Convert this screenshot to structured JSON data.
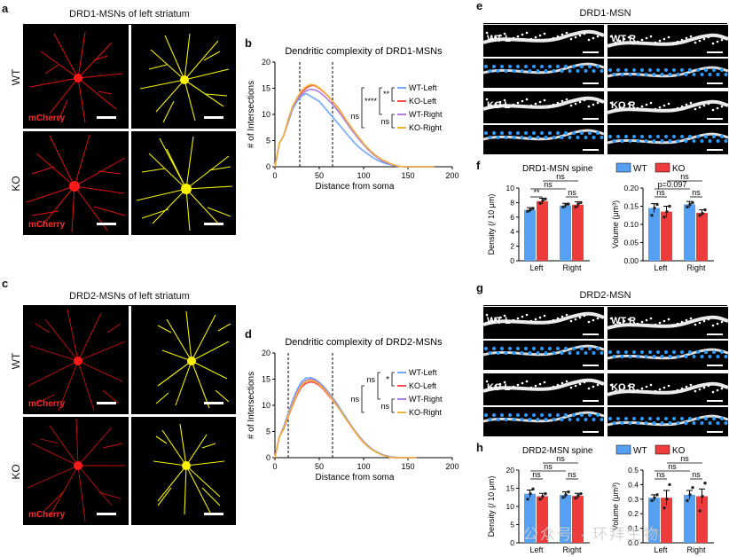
{
  "panels": {
    "a": {
      "letter": "a",
      "title": "DRD1-MSNs of left striatum",
      "rows": [
        "WT",
        "KO"
      ],
      "stain": "mCherry"
    },
    "c": {
      "letter": "c",
      "title": "DRD2-MSNs of left striatum",
      "rows": [
        "WT",
        "KO"
      ],
      "stain": "mCherry"
    },
    "e": {
      "letter": "e",
      "title": "DRD1-MSN",
      "labels": [
        "WT L",
        "WT R",
        "KO L",
        "KO R"
      ]
    },
    "g": {
      "letter": "g",
      "title": "DRD2-MSN",
      "labels": [
        "WT L",
        "WT R",
        "KO L",
        "KO R"
      ]
    },
    "b": {
      "letter": "b"
    },
    "d": {
      "letter": "d"
    },
    "f": {
      "letter": "f"
    },
    "h": {
      "letter": "h"
    }
  },
  "colors": {
    "wt_left": "#6fa8ff",
    "ko_left": "#ff4d4d",
    "wt_right": "#b07be0",
    "ko_right": "#f0b33a",
    "wt_bar": "#55a0f2",
    "ko_bar": "#ee3b3b",
    "neuron_red": "#e01010",
    "trace_yellow": "#f5f000",
    "spine_blue": "#2b9bff"
  },
  "chart_data": [
    {
      "id": "b",
      "type": "line",
      "title": "Dendritic complexity of DRD1-MSNs",
      "xlabel": "Distance from soma",
      "ylabel": "# of Intersections",
      "xlim": [
        0,
        200
      ],
      "ylim": [
        0,
        20
      ],
      "xticks": [
        "0",
        "50",
        "100",
        "150",
        "200"
      ],
      "yticks": [
        "0",
        "5",
        "10",
        "15",
        "20"
      ],
      "dashed_lines_x": [
        28,
        65
      ],
      "x": [
        0,
        5,
        10,
        15,
        20,
        25,
        30,
        35,
        40,
        45,
        50,
        55,
        60,
        65,
        70,
        75,
        80,
        85,
        90,
        95,
        100,
        105,
        110,
        115,
        120,
        125,
        130,
        135,
        140,
        145,
        150,
        160,
        170,
        180
      ],
      "series": [
        {
          "name": "WT-Left",
          "values": [
            0,
            4.5,
            6,
            8.5,
            11,
            12.5,
            13.5,
            14,
            13.5,
            13,
            12.5,
            11.5,
            10.5,
            9.5,
            8.5,
            7.5,
            6.5,
            5.5,
            4.5,
            3.7,
            3,
            2.4,
            1.8,
            1.3,
            0.9,
            0.6,
            0.4,
            0.2,
            0.1,
            0,
            0,
            0,
            0,
            0
          ]
        },
        {
          "name": "KO-Left",
          "values": [
            0,
            4.5,
            6,
            9,
            11.5,
            13,
            14.2,
            15,
            15.5,
            15.5,
            15,
            14.3,
            13.5,
            12.5,
            11.5,
            10.3,
            9,
            7.8,
            6.6,
            5.5,
            4.4,
            3.5,
            2.7,
            2,
            1.4,
            1,
            0.6,
            0.3,
            0.1,
            0,
            0,
            0,
            0,
            0
          ]
        },
        {
          "name": "WT-Right",
          "values": [
            0,
            4.5,
            6,
            8.8,
            11.3,
            12.8,
            13.8,
            14.5,
            14.8,
            14.7,
            14.3,
            13.6,
            12.8,
            11.9,
            10.9,
            9.8,
            8.6,
            7.4,
            6.3,
            5.2,
            4.2,
            3.3,
            2.5,
            1.8,
            1.2,
            0.8,
            0.5,
            0.2,
            0.1,
            0,
            0,
            0,
            0,
            0
          ]
        },
        {
          "name": "KO-Right",
          "values": [
            0,
            4.5,
            6,
            9,
            11.6,
            13.2,
            14.5,
            15.3,
            15.7,
            15.6,
            15.1,
            14.4,
            13.5,
            12.5,
            11.4,
            10.2,
            9,
            7.8,
            6.6,
            5.5,
            4.4,
            3.5,
            2.7,
            2,
            1.4,
            1,
            0.6,
            0.3,
            0.1,
            0,
            0,
            0,
            0,
            0
          ]
        }
      ],
      "stats": [
        {
          "pair": "WT-Left vs KO-Left",
          "label": "**"
        },
        {
          "pair": "WT-Left vs WT-Right",
          "label": "****"
        },
        {
          "pair": "WT-Left vs KO-Right",
          "label": "ns"
        },
        {
          "pair": "WT-Right vs KO-Right",
          "label": "ns"
        }
      ]
    },
    {
      "id": "d",
      "type": "line",
      "title": "Dendritic complexity of DRD2-MSNs",
      "xlabel": "Distance from soma",
      "ylabel": "# of Intersections",
      "xlim": [
        0,
        200
      ],
      "ylim": [
        0,
        20
      ],
      "xticks": [
        "0",
        "50",
        "100",
        "150",
        "200"
      ],
      "yticks": [
        "0",
        "5",
        "10",
        "15",
        "20"
      ],
      "dashed_lines_x": [
        15,
        65
      ],
      "x": [
        0,
        5,
        10,
        15,
        20,
        25,
        30,
        35,
        40,
        45,
        50,
        55,
        60,
        65,
        70,
        75,
        80,
        85,
        90,
        95,
        100,
        105,
        110,
        115,
        120,
        125,
        130,
        135,
        140,
        145,
        150,
        160
      ],
      "series": [
        {
          "name": "WT-Left",
          "values": [
            0,
            4,
            6,
            8.5,
            11,
            13,
            14.5,
            15.2,
            15.3,
            15,
            14.4,
            13.6,
            12.6,
            11.5,
            10.3,
            9,
            7.7,
            6.4,
            5.2,
            4.1,
            3.1,
            2.3,
            1.6,
            1.1,
            0.7,
            0.4,
            0.2,
            0.1,
            0,
            0,
            0,
            0
          ]
        },
        {
          "name": "KO-Left",
          "values": [
            0,
            4,
            5.5,
            7.8,
            10,
            12,
            13.5,
            14.2,
            14.5,
            14.3,
            13.8,
            13,
            12,
            11,
            9.9,
            8.7,
            7.4,
            6.2,
            5,
            3.9,
            2.9,
            2.1,
            1.5,
            1,
            0.6,
            0.3,
            0.1,
            0,
            0,
            0,
            0,
            0
          ]
        },
        {
          "name": "WT-Right",
          "values": [
            0,
            4,
            5.8,
            8.2,
            10.5,
            12.6,
            14,
            14.8,
            15,
            14.8,
            14.2,
            13.4,
            12.4,
            11.3,
            10.1,
            8.8,
            7.5,
            6.3,
            5.1,
            4,
            3,
            2.2,
            1.5,
            1,
            0.6,
            0.3,
            0.1,
            0,
            0,
            0,
            0,
            0
          ]
        },
        {
          "name": "KO-Right",
          "values": [
            0,
            4,
            5.7,
            8,
            10.2,
            12.3,
            13.8,
            14.6,
            14.8,
            14.6,
            14,
            13.2,
            12.2,
            11.1,
            9.9,
            8.7,
            7.4,
            6.2,
            5,
            3.9,
            2.9,
            2.1,
            1.5,
            1,
            0.6,
            0.3,
            0.1,
            0,
            0,
            0,
            0,
            0
          ]
        }
      ],
      "stats": [
        {
          "pair": "WT-Left vs KO-Left",
          "label": "*"
        },
        {
          "pair": "WT-Left vs WT-Right",
          "label": "ns"
        },
        {
          "pair": "WT-Right vs KO-Right",
          "label": "ns"
        }
      ]
    },
    {
      "id": "f-density",
      "type": "bar",
      "title": "DRD1-MSN spine",
      "legend": [
        "WT",
        "KO"
      ],
      "categories": [
        "Left",
        "Right"
      ],
      "ylabel": "Density (/ 10 μm)",
      "ylim": [
        0,
        10
      ],
      "yticks": [
        "0",
        "2",
        "4",
        "6",
        "8",
        "10"
      ],
      "series": [
        {
          "name": "WT",
          "values": [
            7.0,
            7.6
          ]
        },
        {
          "name": "KO",
          "values": [
            8.2,
            7.7
          ]
        }
      ],
      "errors": [
        {
          "name": "WT",
          "values": [
            0.3,
            0.3
          ]
        },
        {
          "name": "KO",
          "values": [
            0.4,
            0.4
          ]
        }
      ],
      "points": [
        {
          "name": "WT",
          "values": [
            [
              6.8,
              7.0,
              7.2
            ],
            [
              7.4,
              7.7,
              7.8
            ]
          ]
        },
        {
          "name": "KO",
          "values": [
            [
              7.9,
              8.3,
              8.5
            ],
            [
              7.4,
              7.8,
              8.0
            ]
          ]
        }
      ],
      "stats": [
        "**",
        "ns",
        "ns",
        "ns",
        "ns"
      ]
    },
    {
      "id": "f-volume",
      "type": "bar",
      "categories": [
        "Left",
        "Right"
      ],
      "ylabel": "Volume (μm³)",
      "ylim": [
        0,
        0.2
      ],
      "yticks": [
        "0.00",
        "0.05",
        "0.10",
        "0.15",
        "0.20"
      ],
      "series": [
        {
          "name": "WT",
          "values": [
            0.145,
            0.155
          ]
        },
        {
          "name": "KO",
          "values": [
            0.135,
            0.132
          ]
        }
      ],
      "errors": [
        {
          "name": "WT",
          "values": [
            0.012,
            0.008
          ]
        },
        {
          "name": "KO",
          "values": [
            0.015,
            0.008
          ]
        }
      ],
      "points": [
        {
          "name": "WT",
          "values": [
            [
              0.125,
              0.145,
              0.155
            ],
            [
              0.148,
              0.155,
              0.16
            ]
          ]
        },
        {
          "name": "KO",
          "values": [
            [
              0.12,
              0.135,
              0.15
            ],
            [
              0.125,
              0.13,
              0.14
            ]
          ]
        }
      ],
      "stats": [
        "ns",
        "ns",
        "ns",
        "ns",
        "p=0.097"
      ]
    },
    {
      "id": "h-density",
      "type": "bar",
      "title": "DRD2-MSN spine",
      "legend": [
        "WT",
        "KO"
      ],
      "categories": [
        "Left",
        "Right"
      ],
      "ylabel": "Density (/ 10 μm)",
      "ylim": [
        0,
        20
      ],
      "yticks": [
        "0",
        "5",
        "10",
        "15",
        "20"
      ],
      "series": [
        {
          "name": "WT",
          "values": [
            13.5,
            13.2
          ]
        },
        {
          "name": "KO",
          "values": [
            12.8,
            12.9
          ]
        }
      ],
      "errors": [
        {
          "name": "WT",
          "values": [
            1.0,
            0.8
          ]
        },
        {
          "name": "KO",
          "values": [
            0.8,
            0.7
          ]
        }
      ],
      "points": [
        {
          "name": "WT",
          "values": [
            [
              12,
              13.5,
              14.8
            ],
            [
              12.5,
              13.2,
              14.0
            ]
          ]
        },
        {
          "name": "KO",
          "values": [
            [
              12,
              12.8,
              13.5
            ],
            [
              12.3,
              13.0,
              13.5
            ]
          ]
        }
      ],
      "stats": [
        "ns",
        "ns",
        "ns",
        "ns",
        "ns"
      ]
    },
    {
      "id": "h-volume",
      "type": "bar",
      "categories": [
        "Left",
        "Right"
      ],
      "ylabel": "Volume (μm³)",
      "ylim": [
        0,
        0.5
      ],
      "yticks": [
        "0.0",
        "0.1",
        "0.2",
        "0.3",
        "0.4",
        "0.5"
      ],
      "series": [
        {
          "name": "WT",
          "values": [
            0.31,
            0.33
          ]
        },
        {
          "name": "KO",
          "values": [
            0.31,
            0.32
          ]
        }
      ],
      "errors": [
        {
          "name": "WT",
          "values": [
            0.02,
            0.03
          ]
        },
        {
          "name": "KO",
          "values": [
            0.05,
            0.05
          ]
        }
      ],
      "points": [
        {
          "name": "WT",
          "values": [
            [
              0.29,
              0.31,
              0.33
            ],
            [
              0.29,
              0.33,
              0.38
            ]
          ]
        },
        {
          "name": "KO",
          "values": [
            [
              0.24,
              0.3,
              0.4
            ],
            [
              0.22,
              0.32,
              0.41
            ]
          ]
        }
      ],
      "stats": [
        "ns",
        "ns",
        "ns",
        "ns",
        "ns"
      ]
    }
  ],
  "watermark": "公众号 · 环拜生物"
}
